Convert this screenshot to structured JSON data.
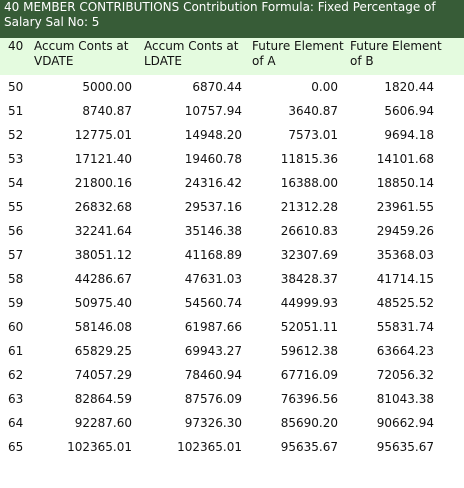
{
  "title": "40 MEMBER CONTRIBUTIONS Contribution Formula: Fixed Percentage of Salary Sal No: 5",
  "colors": {
    "title_bg": "#375c37",
    "header_bg": "#e4fbdf",
    "text": "#111111"
  },
  "columns": {
    "age": "40",
    "vdate": "Accum Conts at VDATE",
    "ldate": "Accum Conts at LDATE",
    "future_a": "Future Element of A",
    "future_b": "Future Element of B"
  },
  "rows": [
    {
      "age": "50",
      "vdate": "5000.00",
      "ldate": "6870.44",
      "a": "0.00",
      "b": "1820.44"
    },
    {
      "age": "51",
      "vdate": "8740.87",
      "ldate": "10757.94",
      "a": "3640.87",
      "b": "5606.94"
    },
    {
      "age": "52",
      "vdate": "12775.01",
      "ldate": "14948.20",
      "a": "7573.01",
      "b": "9694.18"
    },
    {
      "age": "53",
      "vdate": "17121.40",
      "ldate": "19460.78",
      "a": "11815.36",
      "b": "14101.68"
    },
    {
      "age": "54",
      "vdate": "21800.16",
      "ldate": "24316.42",
      "a": "16388.00",
      "b": "18850.14"
    },
    {
      "age": "55",
      "vdate": "26832.68",
      "ldate": "29537.16",
      "a": "21312.28",
      "b": "23961.55"
    },
    {
      "age": "56",
      "vdate": "32241.64",
      "ldate": "35146.38",
      "a": "26610.83",
      "b": "29459.26"
    },
    {
      "age": "57",
      "vdate": "38051.12",
      "ldate": "41168.89",
      "a": "32307.69",
      "b": "35368.03"
    },
    {
      "age": "58",
      "vdate": "44286.67",
      "ldate": "47631.03",
      "a": "38428.37",
      "b": "41714.15"
    },
    {
      "age": "59",
      "vdate": "50975.40",
      "ldate": "54560.74",
      "a": "44999.93",
      "b": "48525.52"
    },
    {
      "age": "60",
      "vdate": "58146.08",
      "ldate": "61987.66",
      "a": "52051.11",
      "b": "55831.74"
    },
    {
      "age": "61",
      "vdate": "65829.25",
      "ldate": "69943.27",
      "a": "59612.38",
      "b": "63664.23"
    },
    {
      "age": "62",
      "vdate": "74057.29",
      "ldate": "78460.94",
      "a": "67716.09",
      "b": "72056.32"
    },
    {
      "age": "63",
      "vdate": "82864.59",
      "ldate": "87576.09",
      "a": "76396.56",
      "b": "81043.38"
    },
    {
      "age": "64",
      "vdate": "92287.60",
      "ldate": "97326.30",
      "a": "85690.20",
      "b": "90662.94"
    },
    {
      "age": "65",
      "vdate": "102365.01",
      "ldate": "102365.01",
      "a": "95635.67",
      "b": "95635.67"
    }
  ]
}
